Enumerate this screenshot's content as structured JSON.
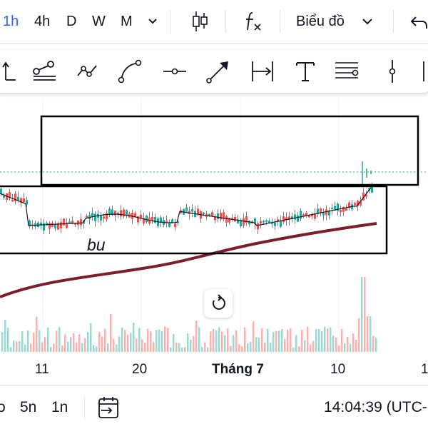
{
  "toolbar": {
    "timeframes": [
      "1h",
      "4h",
      "D",
      "W",
      "M"
    ],
    "active_timeframe": "1h",
    "chart_type_label": "Biểu đồ",
    "accent_color": "#2962ff"
  },
  "drawing_tools": [
    "ray-icon",
    "parallel-channel-icon",
    "path-icon",
    "curve-icon",
    "horizontal-ray-icon",
    "arrow-icon",
    "date-range-icon",
    "text-icon",
    "fib-lines-icon",
    "vertical-line-icon"
  ],
  "chart": {
    "annotation_text": "bu",
    "x_axis_labels": [
      "11",
      "20",
      "Tháng 7",
      "10",
      "1"
    ],
    "ma_color": "#7b1e2c",
    "up_color": "#26a69a",
    "down_color": "#ef5350"
  },
  "bottombar": {
    "ranges": [
      "o",
      "5n",
      "1n"
    ],
    "time_text": "14:04:39 (UTC-"
  }
}
